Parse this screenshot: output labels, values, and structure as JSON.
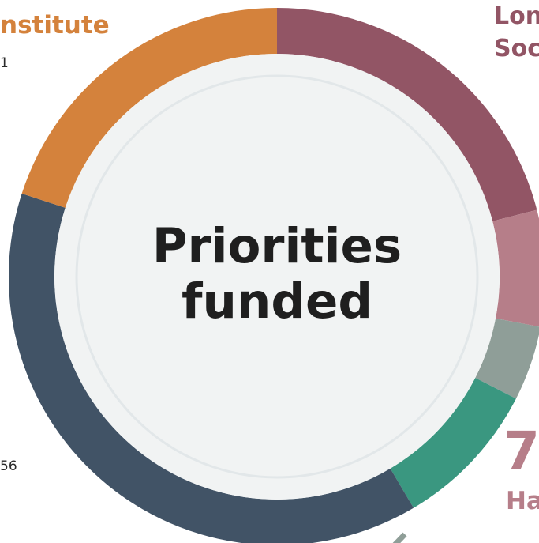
{
  "chart_data": {
    "type": "pie",
    "title": "Priorities funded",
    "slices": [
      {
        "value": 21.0,
        "color": "#925565"
      },
      {
        "value": 7.0,
        "color": "#b67e89"
      },
      {
        "value": 4.5,
        "color": "#8f9e98"
      },
      {
        "value": 9.0,
        "color": "#3a9780"
      },
      {
        "value": 38.5,
        "color": "#415366"
      },
      {
        "value": 20.0,
        "color": "#d4823c"
      }
    ]
  },
  "labels": {
    "institute": "nstitute",
    "institute_count": "1",
    "london_line1": "Lon",
    "london_line2": "Soc",
    "bottom_left_number": "56",
    "big_number": "7",
    "ha_label": "Ha"
  },
  "colors": {
    "ring_inner_fill": "#f1f3f3",
    "ring_inner_stroke": "#e2e7e9",
    "institute": "#d4823c",
    "london": "#925565",
    "ha": "#b67e89"
  }
}
